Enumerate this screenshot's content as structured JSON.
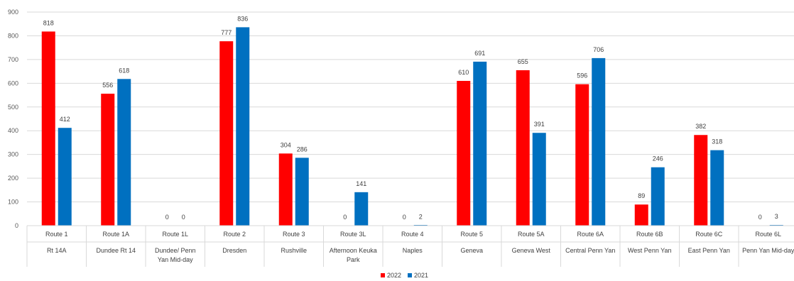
{
  "chart_data": {
    "type": "bar",
    "title": "",
    "xlabel": "",
    "ylabel": "",
    "ylim": [
      0,
      900
    ],
    "yticks": [
      0,
      100,
      200,
      300,
      400,
      500,
      600,
      700,
      800,
      900
    ],
    "grid": true,
    "legend_position": "bottom",
    "categories": [
      {
        "route": "Route 1",
        "desc": [
          "Rt 14A"
        ]
      },
      {
        "route": "Route 1A",
        "desc": [
          "Dundee Rt 14"
        ]
      },
      {
        "route": "Route 1L",
        "desc": [
          "Dundee/ Penn",
          "Yan Mid-day"
        ]
      },
      {
        "route": "Route 2",
        "desc": [
          "Dresden"
        ]
      },
      {
        "route": "Route 3",
        "desc": [
          "Rushville"
        ]
      },
      {
        "route": "Route 3L",
        "desc": [
          "Afternoon Keuka",
          "Park"
        ]
      },
      {
        "route": "Route 4",
        "desc": [
          "Naples"
        ]
      },
      {
        "route": "Route 5",
        "desc": [
          "Geneva"
        ]
      },
      {
        "route": "Route 5A",
        "desc": [
          "Geneva West"
        ]
      },
      {
        "route": "Route 6A",
        "desc": [
          "Central Penn Yan"
        ]
      },
      {
        "route": "Route 6B",
        "desc": [
          "West Penn Yan"
        ]
      },
      {
        "route": "Route 6C",
        "desc": [
          "East Penn Yan"
        ]
      },
      {
        "route": "Route 6L",
        "desc": [
          "Penn Yan Mid-day"
        ]
      }
    ],
    "series": [
      {
        "name": "2022",
        "color": "#ff0000",
        "values": [
          818,
          556,
          0,
          777,
          304,
          0,
          0,
          610,
          655,
          596,
          89,
          382,
          0
        ]
      },
      {
        "name": "2021",
        "color": "#0070c0",
        "values": [
          412,
          618,
          0,
          836,
          286,
          141,
          2,
          691,
          391,
          706,
          246,
          318,
          3
        ]
      }
    ]
  }
}
